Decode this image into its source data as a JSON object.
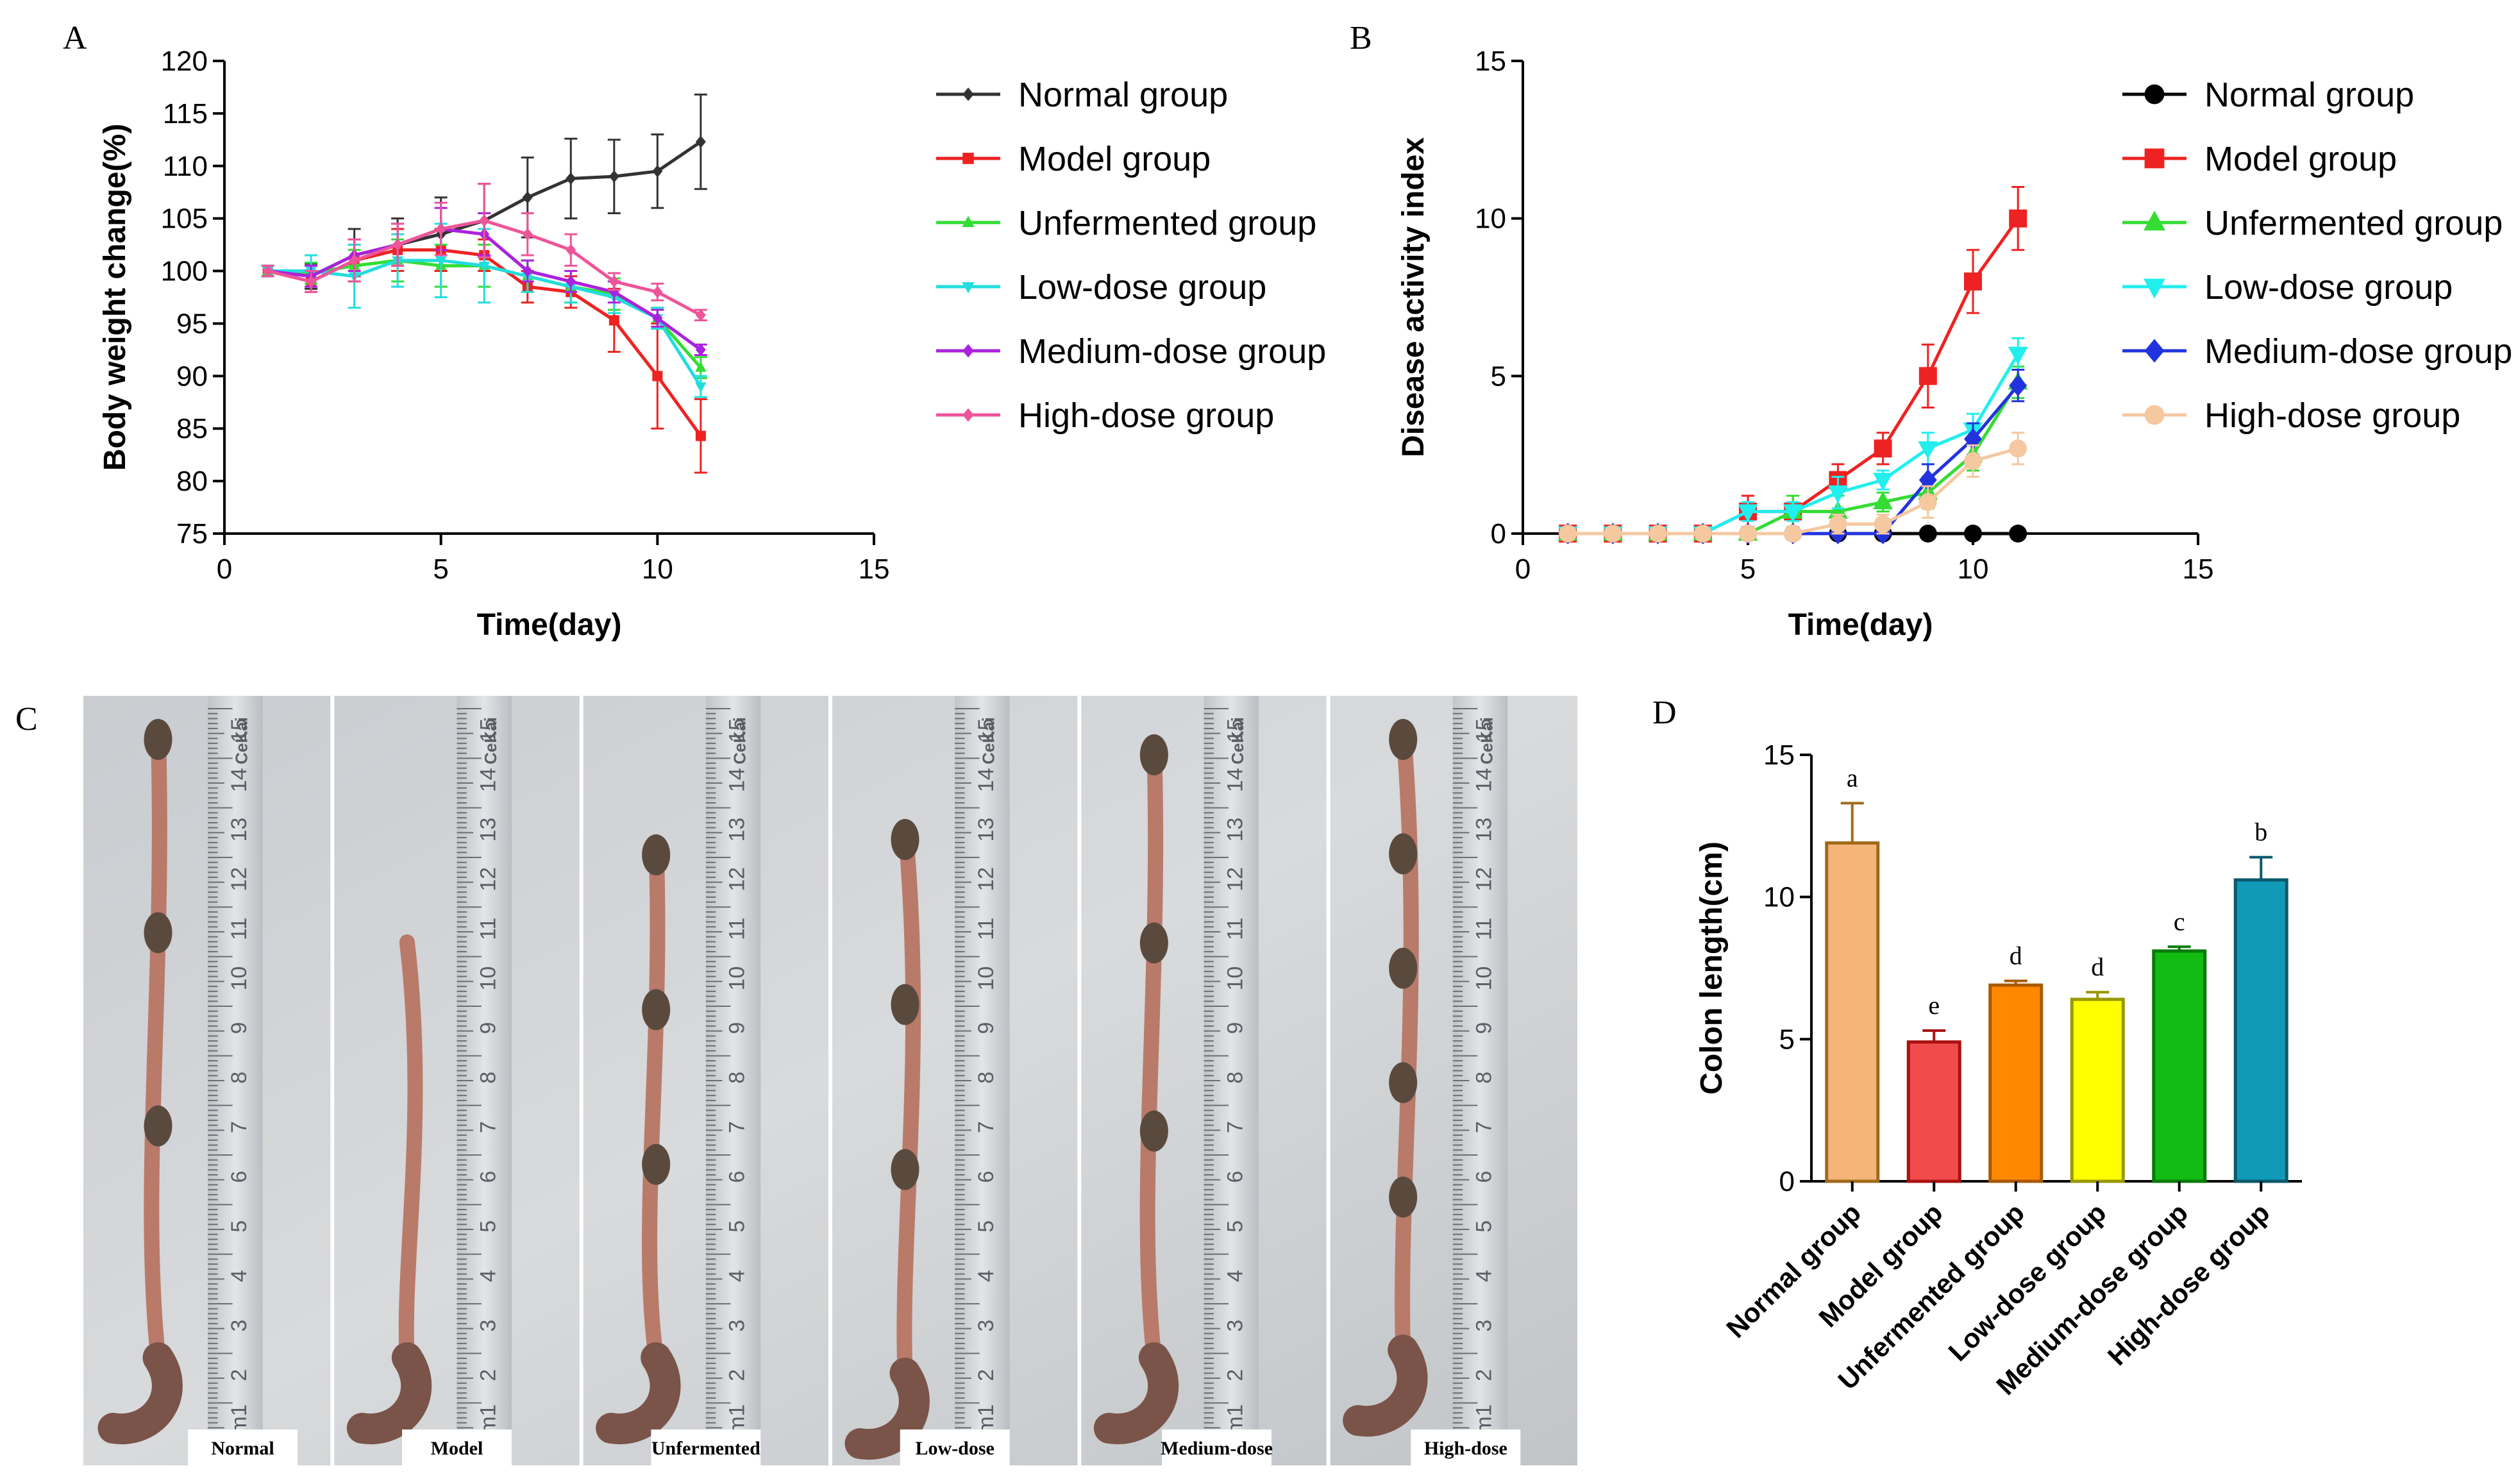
{
  "panels": {
    "a": "A",
    "b": "B",
    "c": "C",
    "d": "D"
  },
  "chart_data": [
    {
      "id": "A",
      "type": "line",
      "ylabel": "Body weight change(%)",
      "xlabel": "Time(day)",
      "xlim": [
        0,
        15
      ],
      "ylim": [
        75,
        120
      ],
      "xticks": [
        "0",
        "5",
        "10",
        "15"
      ],
      "yticks": [
        "75",
        "80",
        "85",
        "90",
        "95",
        "100",
        "105",
        "110",
        "115",
        "120"
      ],
      "x": [
        1,
        2,
        3,
        4,
        5,
        6,
        7,
        8,
        9,
        10,
        11
      ],
      "series": [
        {
          "name": "Normal group",
          "color": "#333333",
          "marker": "diamond",
          "values": [
            100,
            99.5,
            101.5,
            102.5,
            103.5,
            104.8,
            107,
            108.8,
            109,
            109.5,
            112.3
          ],
          "err": [
            0.5,
            1.2,
            2.5,
            2.5,
            3.5,
            3.5,
            3.8,
            3.8,
            3.5,
            3.5,
            4.5
          ]
        },
        {
          "name": "Model group",
          "color": "#ee2222",
          "marker": "square",
          "values": [
            100,
            99,
            101,
            102,
            102,
            101.5,
            98.5,
            98,
            95.3,
            90,
            84.3
          ],
          "err": [
            0.5,
            1,
            1.5,
            2,
            2,
            1.5,
            1.5,
            1.5,
            3,
            5,
            3.5
          ]
        },
        {
          "name": "Unfermented group",
          "color": "#33dd33",
          "marker": "triangle",
          "values": [
            100,
            99.8,
            100.5,
            101,
            100.5,
            100.5,
            99.5,
            98.5,
            97.8,
            95.5,
            90.8
          ],
          "err": [
            0.5,
            1,
            1.5,
            2,
            2,
            2,
            1.5,
            1.5,
            1.5,
            1,
            1
          ]
        },
        {
          "name": "Low-dose group",
          "color": "#22dddd",
          "marker": "triangle-down",
          "values": [
            100,
            100,
            99.5,
            101,
            101,
            100.5,
            99.5,
            98.5,
            97.5,
            95.5,
            89
          ],
          "err": [
            0.5,
            1.5,
            3,
            2.5,
            3.5,
            3.5,
            1.5,
            1.5,
            1.5,
            1,
            1
          ]
        },
        {
          "name": "Medium-dose group",
          "color": "#aa22dd",
          "marker": "diamond",
          "values": [
            100,
            99.5,
            101.5,
            102.5,
            104,
            103.5,
            100,
            99,
            98,
            95.5,
            92.5
          ],
          "err": [
            0.5,
            1,
            1.5,
            2,
            2,
            2,
            1,
            1,
            1,
            0.8,
            0.5
          ]
        },
        {
          "name": "High-dose group",
          "color": "#ee5599",
          "marker": "diamond",
          "values": [
            100,
            99,
            101,
            102.5,
            104,
            104.8,
            103.5,
            102,
            99,
            98,
            95.8
          ],
          "err": [
            0.5,
            1,
            2,
            2,
            2.5,
            3.5,
            2,
            1.5,
            0.8,
            0.8,
            0.5
          ]
        }
      ]
    },
    {
      "id": "B",
      "type": "line",
      "ylabel": "Disease activity index",
      "xlabel": "Time(day)",
      "xlim": [
        0,
        15
      ],
      "ylim": [
        0,
        15
      ],
      "xticks": [
        "0",
        "5",
        "10",
        "15"
      ],
      "yticks": [
        "0",
        "5",
        "10",
        "15"
      ],
      "x": [
        1,
        2,
        3,
        4,
        5,
        6,
        7,
        8,
        9,
        10,
        11
      ],
      "series": [
        {
          "name": "Normal group",
          "color": "#000000",
          "marker": "circle",
          "values": [
            0,
            0,
            0,
            0,
            0,
            0,
            0,
            0,
            0,
            0,
            0
          ],
          "err": [
            0,
            0,
            0,
            0,
            0,
            0,
            0,
            0,
            0,
            0,
            0
          ]
        },
        {
          "name": "Model group",
          "color": "#ee2222",
          "marker": "square",
          "values": [
            0,
            0,
            0,
            0,
            0.7,
            0.7,
            1.7,
            2.7,
            5,
            8,
            10
          ],
          "err": [
            0,
            0,
            0,
            0,
            0.5,
            0.5,
            0.5,
            0.5,
            1,
            1,
            1
          ]
        },
        {
          "name": "Unfermented group",
          "color": "#33dd33",
          "marker": "triangle",
          "values": [
            0,
            0,
            0,
            0,
            0,
            0.7,
            0.7,
            1,
            1.3,
            2.5,
            4.8
          ],
          "err": [
            0,
            0,
            0,
            0,
            0,
            0.5,
            0.5,
            0.3,
            0.5,
            0.5,
            0.5
          ]
        },
        {
          "name": "Low-dose group",
          "color": "#22eeee",
          "marker": "triangle-down",
          "values": [
            0,
            0,
            0,
            0,
            0.7,
            0.7,
            1.3,
            1.7,
            2.7,
            3.3,
            5.7
          ],
          "err": [
            0,
            0,
            0,
            0,
            0.3,
            0.3,
            0.5,
            0.3,
            0.5,
            0.5,
            0.5
          ]
        },
        {
          "name": "Medium-dose group",
          "color": "#2233dd",
          "marker": "diamond",
          "values": [
            0,
            0,
            0,
            0,
            0,
            0,
            0,
            0,
            1.7,
            3,
            4.7
          ],
          "err": [
            0,
            0,
            0,
            0,
            0,
            0,
            0,
            0,
            0.5,
            0.5,
            0.5
          ]
        },
        {
          "name": "High-dose group",
          "color": "#f5c8a0",
          "marker": "circle",
          "values": [
            0,
            0,
            0,
            0,
            0,
            0,
            0.3,
            0.3,
            1,
            2.3,
            2.7
          ],
          "err": [
            0,
            0,
            0,
            0,
            0,
            0,
            0.3,
            0.3,
            0.5,
            0.5,
            0.5
          ]
        }
      ]
    },
    {
      "id": "D",
      "type": "bar",
      "ylabel": "Colon length(cm)",
      "ylim": [
        0,
        15
      ],
      "yticks": [
        "0",
        "5",
        "10",
        "15"
      ],
      "categories": [
        "Normal group",
        "Model group",
        "Unfermented group",
        "Low-dose group",
        "Medium-dose group",
        "High-dose group"
      ],
      "values": [
        11.9,
        4.9,
        6.9,
        6.4,
        8.1,
        10.6
      ],
      "err": [
        1.4,
        0.4,
        0.15,
        0.25,
        0.15,
        0.8
      ],
      "letters": [
        "a",
        "e",
        "d",
        "d",
        "c",
        "b"
      ],
      "fill": [
        "#f5b57a",
        "#f24b4b",
        "#ff8800",
        "#ffff00",
        "#11bb11",
        "#1199b8"
      ],
      "stroke": [
        "#a06a1a",
        "#aa1111",
        "#a85a00",
        "#999900",
        "#0a7a0a",
        "#0a5a6a"
      ]
    }
  ],
  "photos": {
    "labels": [
      "Normal",
      "Model",
      "Unfermented",
      "Low-dose",
      "Medium-dose",
      "High-dose"
    ],
    "brand": "CeKai",
    "ruler_numbers": [
      "cm1",
      "2",
      "3",
      "4",
      "5",
      "6",
      "7",
      "8",
      "9",
      "10",
      "11",
      "12",
      "13",
      "14",
      "15"
    ]
  }
}
